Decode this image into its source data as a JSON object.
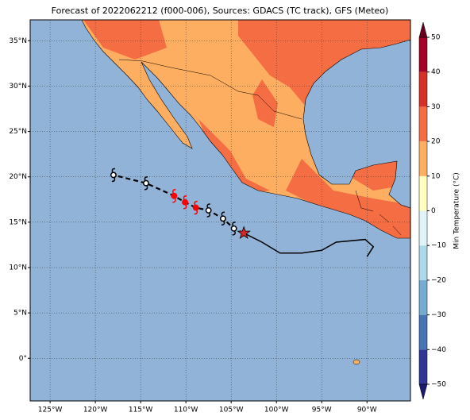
{
  "map": {
    "title": "Forecast of 2022062212 (f000-006), Sources: GDACS (TC track), GFS (Meteo)",
    "lon_range": [
      -127.2,
      -85.2
    ],
    "lat_range": [
      -4.7,
      37.3
    ],
    "lon_ticks": [
      {
        "value": -125,
        "label": "125°W"
      },
      {
        "value": -120,
        "label": "120°W"
      },
      {
        "value": -115,
        "label": "115°W"
      },
      {
        "value": -110,
        "label": "110°W"
      },
      {
        "value": -105,
        "label": "105°W"
      },
      {
        "value": -100,
        "label": "100°W"
      },
      {
        "value": -95,
        "label": "95°W"
      },
      {
        "value": -90,
        "label": "90°W"
      }
    ],
    "lat_ticks": [
      {
        "value": 0,
        "label": "0°"
      },
      {
        "value": 5,
        "label": "5°N"
      },
      {
        "value": 10,
        "label": "10°N"
      },
      {
        "value": 15,
        "label": "15°N"
      },
      {
        "value": 20,
        "label": "20°N"
      },
      {
        "value": 25,
        "label": "25°N"
      },
      {
        "value": 30,
        "label": "30°N"
      },
      {
        "value": 35,
        "label": "35°N"
      }
    ],
    "grid": true,
    "colorbar": {
      "label": "Min Temperature (°C)",
      "range": [
        -50,
        50
      ],
      "ticks": [
        {
          "value": -50,
          "label": "−50"
        },
        {
          "value": -40,
          "label": "−40"
        },
        {
          "value": -30,
          "label": "−30"
        },
        {
          "value": -20,
          "label": "−20"
        },
        {
          "value": -10,
          "label": "−10"
        },
        0,
        10,
        20,
        30,
        40,
        50
      ],
      "colors": [
        "#313695",
        "#4575b4",
        "#74add1",
        "#abd9e9",
        "#e0f3f8",
        "#ffffbf",
        "#fdae61",
        "#f46d43",
        "#d73027",
        "#a50026"
      ],
      "under_color": "#1a1a70",
      "over_color": "#67001f"
    },
    "storm": {
      "current": {
        "lon": -103.6,
        "lat": 13.8,
        "color": "#d62728"
      },
      "forecast": {
        "lon": [
          -104.7,
          -105.9,
          -107.5,
          -108.9,
          -110.1,
          -111.3,
          -114.4,
          -118.0
        ],
        "lat": [
          14.3,
          15.4,
          16.3,
          16.6,
          17.2,
          17.9,
          19.3,
          20.2
        ],
        "colors": [
          "#000000",
          "#000000",
          "#000000",
          "#ff0000",
          "#ff0000",
          "#ff0000",
          "#000000",
          "#000000"
        ]
      },
      "past_track": {
        "lon": [
          -103.6,
          -101.6,
          -99.6,
          -97.2,
          -95.0,
          -93.4,
          -90.2,
          -89.3,
          -90.0
        ],
        "lat": [
          13.8,
          12.8,
          11.6,
          11.6,
          11.9,
          12.8,
          13.1,
          12.3,
          11.2
        ]
      }
    }
  }
}
